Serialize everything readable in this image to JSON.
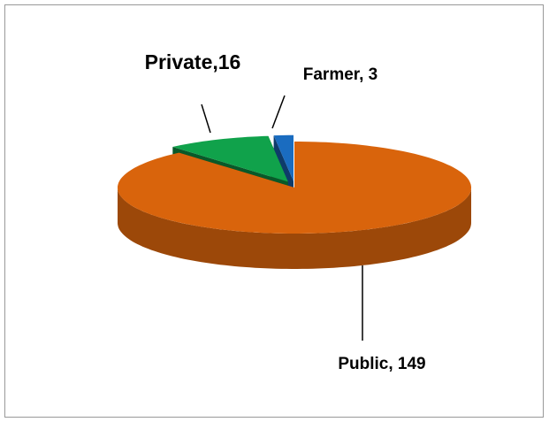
{
  "chart_data": {
    "type": "pie3d",
    "values": [
      149,
      16,
      3
    ],
    "value_labels": [
      "Public, 149",
      "Private,16",
      "Farmer, 3"
    ],
    "colors": [
      "#d9640c",
      "#10a24b",
      "#1a6cc0"
    ]
  }
}
